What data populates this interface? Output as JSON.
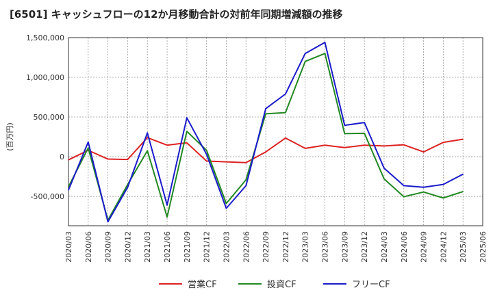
{
  "chart_data": {
    "type": "line",
    "title": "[6501]  キャッシュフローの12か月移動合計の対前年同期増減額の推移",
    "ylabel": "(百万円)",
    "xlabel": "",
    "ylim": [
      -870000,
      1500000
    ],
    "yticks": [
      1500000,
      1000000,
      500000,
      0,
      -500000
    ],
    "ytick_labels": [
      "1,500,000",
      "1,000,000",
      "500,000",
      "0",
      "-500,000"
    ],
    "x_tick_labels": [
      "2020/03",
      "2020/06",
      "2020/09",
      "2020/12",
      "2021/03",
      "2021/06",
      "2021/09",
      "2021/12",
      "2022/03",
      "2022/06",
      "2022/09",
      "2022/12",
      "2023/03",
      "2023/06",
      "2023/09",
      "2023/12",
      "2024/03",
      "2024/06",
      "2024/09",
      "2024/12",
      "2025/03",
      "2025/06"
    ],
    "x": [
      "2020/03",
      "2020/06",
      "2020/09",
      "2020/12",
      "2021/03",
      "2021/06",
      "2021/09",
      "2021/12",
      "2022/03",
      "2022/06",
      "2022/09",
      "2022/12",
      "2023/03",
      "2023/06",
      "2023/09",
      "2023/12",
      "2024/03",
      "2024/06",
      "2024/09",
      "2024/12",
      "2025/03"
    ],
    "grid": true,
    "legend_position": "bottom",
    "series": [
      {
        "name": "営業CF",
        "color": "#dd2222",
        "values": [
          -40000,
          80000,
          -30000,
          -35000,
          240000,
          145000,
          175000,
          -55000,
          -65000,
          -75000,
          60000,
          235000,
          105000,
          145000,
          115000,
          145000,
          135000,
          150000,
          60000,
          180000,
          220000
        ]
      },
      {
        "name": "投資CF",
        "color": "#228822",
        "values": [
          -380000,
          110000,
          -800000,
          -350000,
          75000,
          -760000,
          320000,
          80000,
          -590000,
          -290000,
          540000,
          555000,
          1200000,
          1300000,
          290000,
          295000,
          -280000,
          -505000,
          -445000,
          -520000,
          -440000
        ]
      },
      {
        "name": "フリーCF",
        "color": "#1a1acc",
        "values": [
          -420000,
          185000,
          -820000,
          -385000,
          300000,
          -610000,
          490000,
          30000,
          -650000,
          -365000,
          605000,
          790000,
          1300000,
          1440000,
          395000,
          430000,
          -145000,
          -365000,
          -385000,
          -350000,
          -220000
        ]
      }
    ]
  }
}
